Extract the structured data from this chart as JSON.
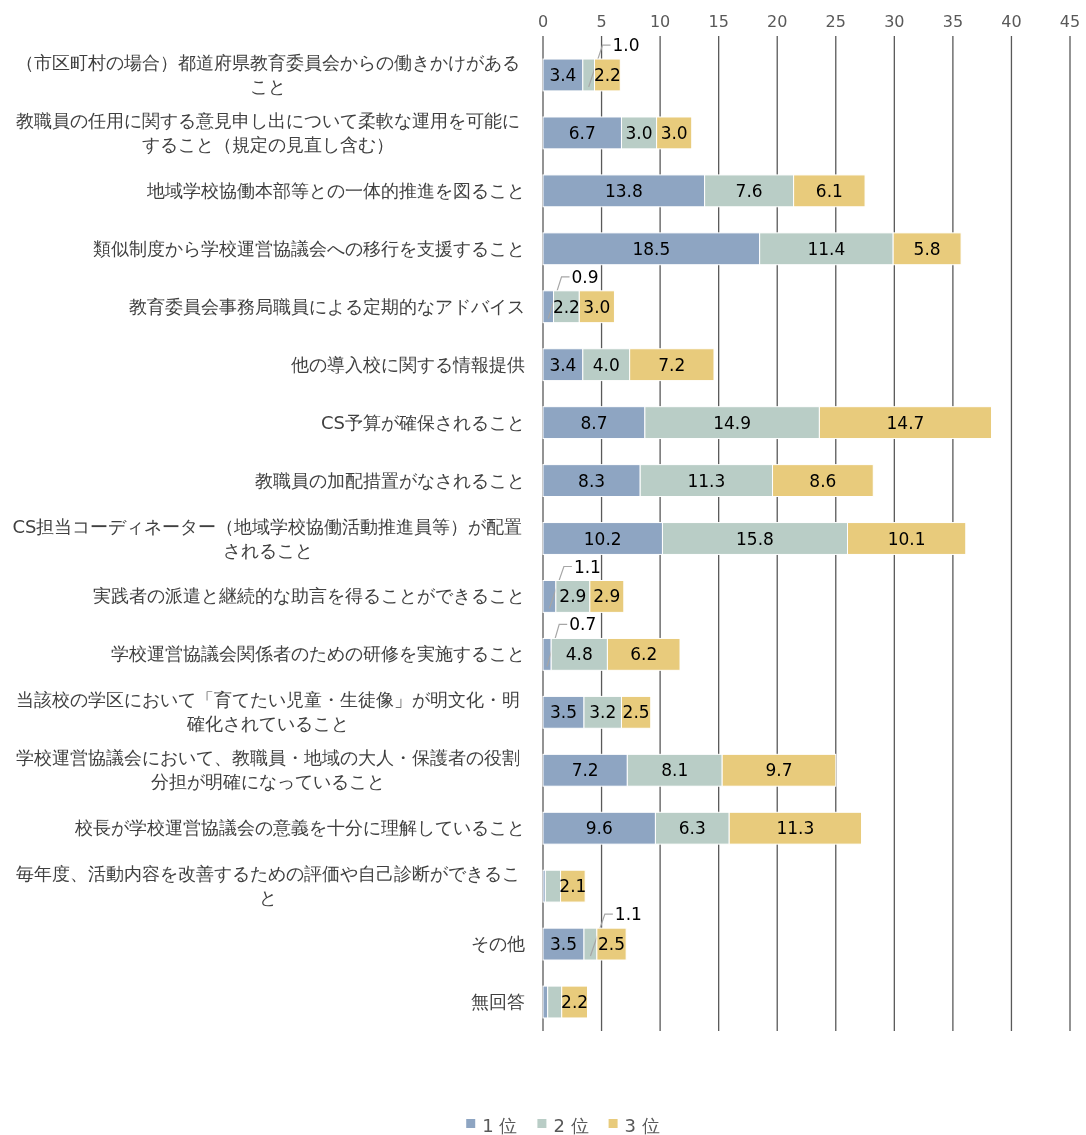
{
  "chart_data": {
    "type": "bar",
    "orientation": "horizontal",
    "stacked": true,
    "categories": [
      "（市区町村の場合）都道府県教育委員会からの働きかけがあること",
      "教職員の任用に関する意見申し出について柔軟な運用を可能にすること（規定の見直し含む）",
      "地域学校協働本部等との一体的推進を図ること",
      "類似制度から学校運営協議会への移行を支援すること",
      "教育委員会事務局職員による定期的なアドバイス",
      "他の導入校に関する情報提供",
      "CS予算が確保されること",
      "教職員の加配措置がなされること",
      "CS担当コーディネーター（地域学校協働活動推進員等）が配置されること",
      "実践者の派遣と継続的な助言を得ることができること",
      "学校運営協議会関係者のための研修を実施すること",
      "当該校の学区において「育てたい児童・生徒像」が明文化・明確化されていること",
      "学校運営協議会において、教職員・地域の大人・保護者の役割分担が明確になっていること",
      "校長が学校運営協議会の意義を十分に理解していること",
      "毎年度、活動内容を改善するための評価や自己診断ができること",
      "その他",
      "無回答"
    ],
    "series": [
      {
        "name": "1 位",
        "color": "#8ea5c2",
        "values": [
          3.4,
          6.7,
          13.8,
          18.5,
          0.9,
          3.4,
          8.7,
          8.3,
          10.2,
          1.1,
          0.7,
          3.5,
          7.2,
          9.6,
          0.2,
          3.5,
          0.4
        ],
        "value_labels": [
          "3.4",
          "6.7",
          "13.8",
          "18.5",
          "0.9",
          "3.4",
          "8.7",
          "8.3",
          "10.2",
          "1.1",
          "0.7",
          "3.5",
          "7.2",
          "9.6",
          null,
          "3.5",
          null
        ]
      },
      {
        "name": "2 位",
        "color": "#b9cdc6",
        "values": [
          1.0,
          3.0,
          7.6,
          11.4,
          2.2,
          4.0,
          14.9,
          11.3,
          15.8,
          2.9,
          4.8,
          3.2,
          8.1,
          6.3,
          1.3,
          1.1,
          1.2
        ],
        "value_labels": [
          "1.0",
          "3.0",
          "7.6",
          "11.4",
          "2.2",
          "4.0",
          "14.9",
          "11.3",
          "15.8",
          "2.9",
          "4.8",
          "3.2",
          "8.1",
          "6.3",
          null,
          "1.1",
          null
        ]
      },
      {
        "name": "3 位",
        "color": "#e8cb7c",
        "values": [
          2.2,
          3.0,
          6.1,
          5.8,
          3.0,
          7.2,
          14.7,
          8.6,
          10.1,
          2.9,
          6.2,
          2.5,
          9.7,
          11.3,
          2.1,
          2.5,
          2.2
        ],
        "value_labels": [
          "2.2",
          "3.0",
          "6.1",
          "5.8",
          "3.0",
          "7.2",
          "14.7",
          "8.6",
          "10.1",
          "2.9",
          "6.2",
          "2.5",
          "9.7",
          "11.3",
          "2.1",
          "2.5",
          "2.2"
        ]
      }
    ],
    "xlim": [
      0,
      45
    ],
    "xticks": [
      0,
      5,
      10,
      15,
      20,
      25,
      30,
      35,
      40,
      45
    ],
    "grid": "x",
    "legend": "bottom"
  }
}
